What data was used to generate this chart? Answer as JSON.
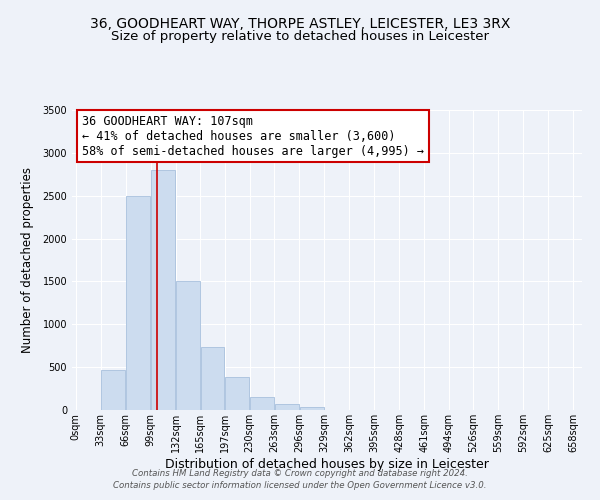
{
  "title": "36, GOODHEART WAY, THORPE ASTLEY, LEICESTER, LE3 3RX",
  "subtitle": "Size of property relative to detached houses in Leicester",
  "xlabel": "Distribution of detached houses by size in Leicester",
  "ylabel": "Number of detached properties",
  "bar_left_edges": [
    0,
    33,
    66,
    99,
    132,
    165,
    197,
    230,
    263,
    296,
    329,
    362,
    395,
    428,
    461,
    494,
    526,
    559,
    592,
    625
  ],
  "bar_widths": [
    33,
    33,
    33,
    33,
    33,
    32,
    33,
    33,
    33,
    33,
    33,
    33,
    33,
    33,
    33,
    32,
    33,
    33,
    33,
    33
  ],
  "bar_heights": [
    5,
    470,
    2500,
    2800,
    1500,
    730,
    390,
    150,
    75,
    30,
    0,
    0,
    0,
    0,
    0,
    0,
    0,
    0,
    0,
    0
  ],
  "bar_color": "#ccdcef",
  "bar_edge_color": "#a8c0dd",
  "tick_labels": [
    "0sqm",
    "33sqm",
    "66sqm",
    "99sqm",
    "132sqm",
    "165sqm",
    "197sqm",
    "230sqm",
    "263sqm",
    "296sqm",
    "329sqm",
    "362sqm",
    "395sqm",
    "428sqm",
    "461sqm",
    "494sqm",
    "526sqm",
    "559sqm",
    "592sqm",
    "625sqm",
    "658sqm"
  ],
  "ylim": [
    0,
    3500
  ],
  "yticks": [
    0,
    500,
    1000,
    1500,
    2000,
    2500,
    3000,
    3500
  ],
  "vline_x": 107,
  "vline_color": "#cc0000",
  "annotation_line1": "36 GOODHEART WAY: 107sqm",
  "annotation_line2": "← 41% of detached houses are smaller (3,600)",
  "annotation_line3": "58% of semi-detached houses are larger (4,995) →",
  "annotation_fontsize": 8.5,
  "footer_line1": "Contains HM Land Registry data © Crown copyright and database right 2024.",
  "footer_line2": "Contains public sector information licensed under the Open Government Licence v3.0.",
  "background_color": "#eef2f9",
  "grid_color": "#ffffff",
  "title_fontsize": 10,
  "subtitle_fontsize": 9.5,
  "xlabel_fontsize": 9,
  "ylabel_fontsize": 8.5,
  "tick_fontsize": 7
}
